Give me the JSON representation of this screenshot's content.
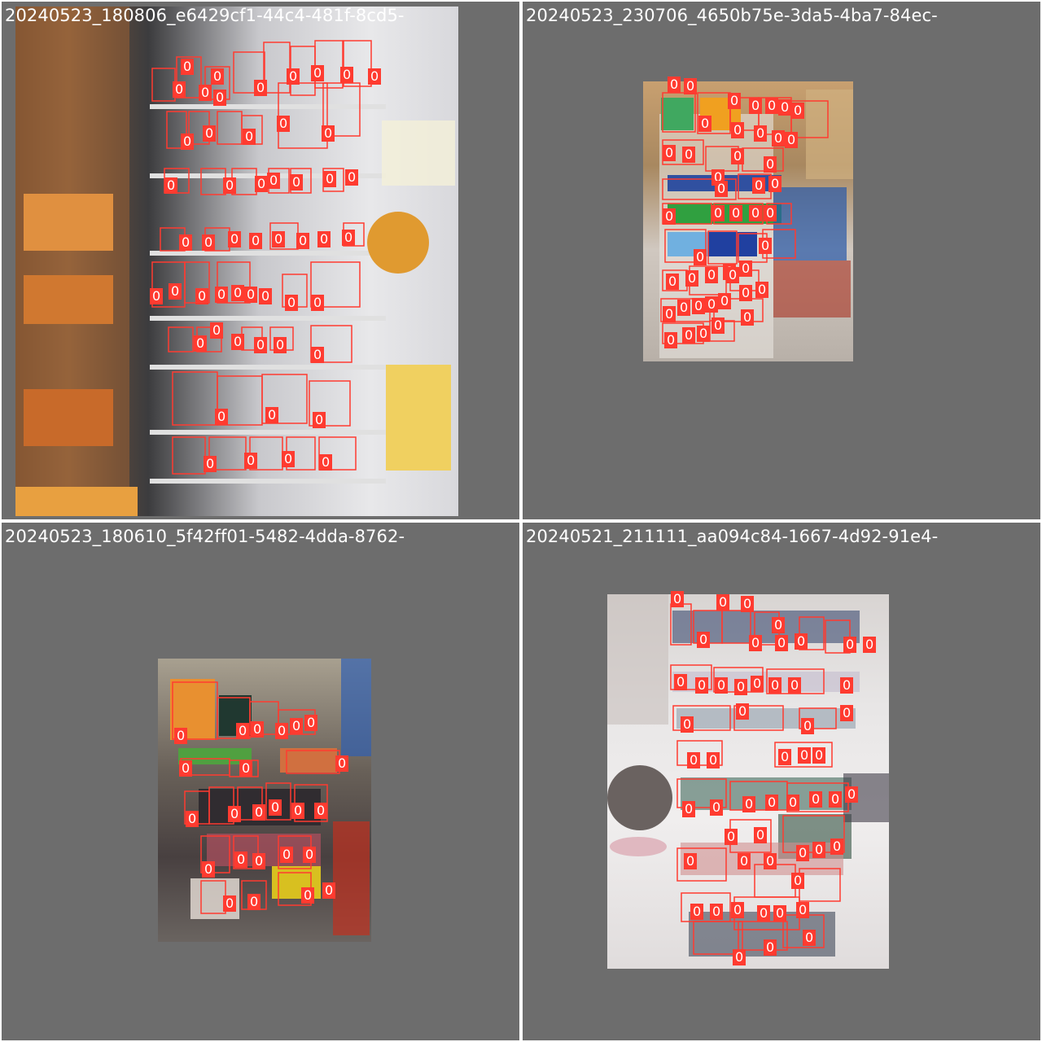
{
  "panels": [
    {
      "title": "20240523_180806_e6429cf1-44c4-481f-8cd5-",
      "label": "0",
      "accent": "#ff3b30"
    },
    {
      "title": "20240523_230706_4650b75e-3da5-4ba7-84ec-",
      "label": "0",
      "accent": "#ff3b30"
    },
    {
      "title": "20240523_180610_5f42ff01-5482-4dda-8762-",
      "label": "0",
      "accent": "#ff3b30"
    },
    {
      "title": "20240521_211111_aa094c84-1667-4d92-91e4-",
      "label": "0",
      "accent": "#ff3b30"
    }
  ],
  "background_color": "#6d6d6d"
}
